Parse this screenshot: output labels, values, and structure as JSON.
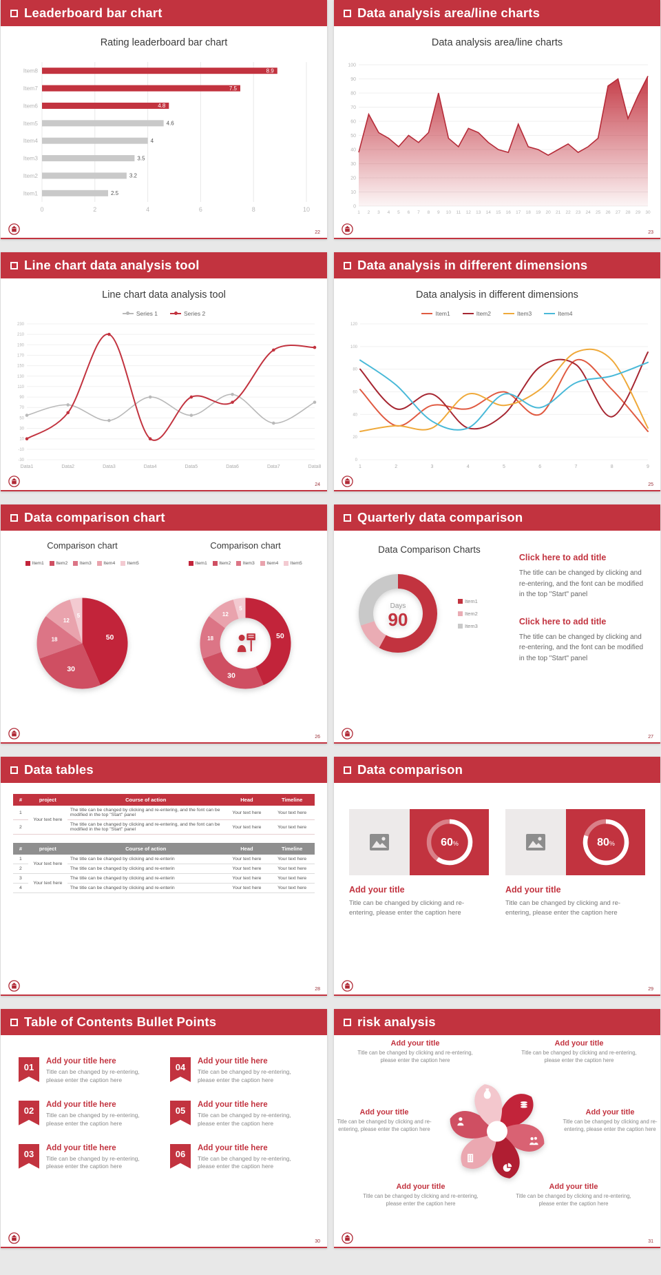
{
  "page": {
    "background": "#e8e8e8",
    "accent": "#c2333f"
  },
  "slides": [
    {
      "header": "Leaderboard bar chart",
      "page_no": "22",
      "chart_title": "Rating leaderboard bar chart",
      "chart_data": {
        "type": "hbar",
        "title": "Rating leaderboard bar chart",
        "categories": [
          "Item8",
          "Item7",
          "Item6",
          "Item5",
          "Item4",
          "Item3",
          "Item2",
          "Item1"
        ],
        "values": [
          8.9,
          7.5,
          4.8,
          4.6,
          4,
          3.5,
          3.2,
          2.5
        ],
        "bar_colors": [
          "#c2333f",
          "#c2333f",
          "#c2333f",
          "#c9c9c9",
          "#c9c9c9",
          "#c9c9c9",
          "#c9c9c9",
          "#c9c9c9"
        ],
        "value_label_colors": [
          "#ffffff",
          "#ffffff",
          "#ffffff",
          "#555555",
          "#555555",
          "#555555",
          "#555555",
          "#555555"
        ],
        "xticks": [
          0,
          2,
          4,
          6,
          8,
          10
        ],
        "xlim": [
          0,
          10
        ]
      }
    },
    {
      "header": "Data analysis area/line charts",
      "page_no": "23",
      "chart_title": "Data analysis area/line charts",
      "chart_data": {
        "type": "area",
        "x": [
          "1",
          "2",
          "3",
          "4",
          "5",
          "6",
          "7",
          "8",
          "9",
          "10",
          "11",
          "12",
          "13",
          "14",
          "15",
          "16",
          "17",
          "18",
          "19",
          "20",
          "21",
          "22",
          "23",
          "24",
          "25",
          "26",
          "27",
          "28",
          "29",
          "30"
        ],
        "values": [
          38,
          65,
          52,
          48,
          42,
          50,
          45,
          52,
          80,
          48,
          42,
          55,
          52,
          45,
          40,
          38,
          58,
          42,
          40,
          36,
          40,
          44,
          38,
          42,
          48,
          85,
          90,
          62,
          78,
          92
        ],
        "ylim": [
          0,
          100
        ],
        "yticks": [
          0,
          10,
          20,
          30,
          40,
          50,
          60,
          70,
          80,
          90,
          100
        ],
        "line_color": "#b52b38",
        "fill_color": "#c2333f"
      }
    },
    {
      "header": "Line chart data analysis tool",
      "page_no": "24",
      "chart_title": "Line chart data analysis tool",
      "chart_data": {
        "type": "line",
        "categories": [
          "Data1",
          "Data2",
          "Data3",
          "Data4",
          "Data5",
          "Data6",
          "Data7",
          "Data8"
        ],
        "yticks": [
          -30,
          -10,
          10,
          30,
          50,
          70,
          90,
          110,
          130,
          150,
          170,
          190,
          210,
          230
        ],
        "ylim": [
          -30,
          230
        ],
        "markers": true,
        "smooth": true,
        "series": [
          {
            "name": "Series 1",
            "color": "#b9b9b9",
            "width": 1.6,
            "values": [
              55,
              75,
              45,
              90,
              55,
              95,
              40,
              80
            ]
          },
          {
            "name": "Series 2",
            "color": "#c2333f",
            "width": 2,
            "values": [
              10,
              60,
              210,
              10,
              90,
              80,
              180,
              185
            ]
          }
        ]
      }
    },
    {
      "header": "Data analysis in different dimensions",
      "page_no": "25",
      "chart_title": "Data analysis in different dimensions",
      "chart_data": {
        "type": "line",
        "categories": [
          "1",
          "2",
          "3",
          "4",
          "5",
          "6",
          "7",
          "8",
          "9"
        ],
        "yticks": [
          0,
          20,
          40,
          60,
          80,
          100,
          120
        ],
        "ylim": [
          0,
          120
        ],
        "markers": false,
        "smooth": true,
        "series": [
          {
            "name": "Item1",
            "color": "#e05a41",
            "width": 2,
            "values": [
              62,
              30,
              48,
              45,
              60,
              40,
              88,
              62,
              25
            ]
          },
          {
            "name": "Item2",
            "color": "#a62631",
            "width": 2,
            "values": [
              80,
              45,
              58,
              28,
              40,
              82,
              84,
              38,
              95
            ]
          },
          {
            "name": "Item3",
            "color": "#efa93a",
            "width": 2,
            "values": [
              25,
              30,
              28,
              58,
              48,
              62,
              95,
              88,
              28
            ]
          },
          {
            "name": "Item4",
            "color": "#49b9d8",
            "width": 2,
            "values": [
              88,
              66,
              34,
              28,
              58,
              46,
              68,
              74,
              86
            ]
          }
        ]
      }
    },
    {
      "header": "Data comparison chart",
      "page_no": "26",
      "charts": [
        {
          "type": "pie",
          "title": "Comparison chart",
          "labels": [
            "Item1",
            "Item2",
            "Item3",
            "Item4",
            "Item5"
          ],
          "values": [
            50,
            30,
            18,
            12,
            5
          ],
          "colors": [
            "#c2243a",
            "#cf4f62",
            "#dc7586",
            "#e9a3ad",
            "#f3cad1"
          ],
          "donut": false
        },
        {
          "type": "pie",
          "title": "Comparison chart",
          "labels": [
            "Item1",
            "Item2",
            "Item3",
            "Item4",
            "Item5"
          ],
          "values": [
            50,
            30,
            18,
            12,
            5
          ],
          "colors": [
            "#c2243a",
            "#cf4f62",
            "#dc7586",
            "#e9a3ad",
            "#f3cad1"
          ],
          "donut": true,
          "center_icon": "presenter-icon"
        }
      ]
    },
    {
      "header": "Quarterly data comparison",
      "page_no": "27",
      "chart_title": "Data Comparison Charts",
      "chart_data": {
        "type": "donut_stat",
        "labels": [
          "Item1",
          "Item2",
          "Item3"
        ],
        "values": [
          58,
          12,
          30
        ],
        "colors": [
          "#c2333f",
          "#eaacb4",
          "#c9c9c9"
        ],
        "center_label": "Days",
        "center_value": "90"
      },
      "blocks": [
        {
          "heading": "Click here to add title",
          "body": "The title can be changed by clicking and re-entering, and the font can be modified in the top \"Start\" panel"
        },
        {
          "heading": "Click here to add title",
          "body": "The title can be changed by clicking and re-entering, and the font can be modified in the top \"Start\" panel"
        }
      ]
    },
    {
      "header": "Data tables",
      "page_no": "28",
      "table1": {
        "columns": [
          "#",
          "project",
          "Course of action",
          "Head",
          "Timeline"
        ],
        "project": "Your text here",
        "rows": [
          {
            "no": "1",
            "action": "The title can be changed by clicking and re-entering, and the font can be modified in the top \"Start\" panel",
            "head": "Your text here",
            "timeline": "Your text here"
          },
          {
            "no": "2",
            "action": "The title can be changed by clicking and re-entering, and the font can be modified in the top \"Start\" panel",
            "head": "Your text here",
            "timeline": "Your text here"
          }
        ]
      },
      "table2": {
        "columns": [
          "#",
          "project",
          "Course of action",
          "Head",
          "Timeline"
        ],
        "project_a": "Your text here",
        "project_b": "Your text here",
        "rows": [
          {
            "no": "1",
            "action": "The title can be changed by clicking and re-enterin",
            "head": "Your text here",
            "timeline": "Your text here"
          },
          {
            "no": "2",
            "action": "The title can be changed by clicking and re-enterin",
            "head": "Your text here",
            "timeline": "Your text here"
          },
          {
            "no": "3",
            "action": "The title can be changed by clicking and re-enterin",
            "head": "Your text here",
            "timeline": "Your text here"
          },
          {
            "no": "4",
            "action": "The title can be changed by clicking and re-enterin",
            "head": "Your text here",
            "timeline": "Your text here"
          }
        ]
      }
    },
    {
      "header": "Data comparison",
      "page_no": "29",
      "cards": [
        {
          "ring": {
            "type": "progress",
            "value": 60,
            "unit": "%"
          },
          "title": "Add your title",
          "caption": "Title can be changed by clicking and re-entering, please enter the caption here"
        },
        {
          "ring": {
            "type": "progress",
            "value": 80,
            "unit": "%"
          },
          "title": "Add your title",
          "caption": "Title can be changed by clicking and re-entering, please enter the caption here"
        }
      ]
    },
    {
      "header": "Table of Contents Bullet Points",
      "page_no": "30",
      "items": [
        {
          "num": "01",
          "title": "Add your title here",
          "caption": "Title can be changed by re-entering, please enter the caption here"
        },
        {
          "num": "02",
          "title": "Add your title here",
          "caption": "Title can be changed by re-entering, please enter the caption here"
        },
        {
          "num": "03",
          "title": "Add your title here",
          "caption": "Title can be changed by re-entering, please enter the caption here"
        },
        {
          "num": "04",
          "title": "Add your title here",
          "caption": "Title can be changed by re-entering, please enter the caption here"
        },
        {
          "num": "05",
          "title": "Add your title here",
          "caption": "Title can be changed by re-entering, please enter the caption here"
        },
        {
          "num": "06",
          "title": "Add your title here",
          "caption": "Title can be changed by re-entering, please enter the caption here"
        }
      ]
    },
    {
      "header": "risk analysis",
      "page_no": "31",
      "diagram": {
        "type": "pinwheel",
        "petal_colors": [
          "#c2243a",
          "#d96273",
          "#b01e32",
          "#eba8b1",
          "#cf4f62",
          "#f3c7cd"
        ],
        "icons": [
          "coins-icon",
          "people-icon",
          "pie-icon",
          "building-icon",
          "person-icon",
          "moneybag-icon"
        ]
      },
      "labels": [
        {
          "title": "Add your title",
          "caption": "Title can be changed by clicking and re-entering, please enter the caption here"
        },
        {
          "title": "Add your title",
          "caption": "Title can be changed by clicking and re-entering, please enter the caption here"
        },
        {
          "title": "Add your title",
          "caption": "Title can be changed by clicking and re-entering, please enter the caption here"
        },
        {
          "title": "Add your title",
          "caption": "Title can be changed by clicking and re-entering, please enter the caption here"
        },
        {
          "title": "Add your title",
          "caption": "Title can be changed by clicking and re-entering, please enter the caption here"
        },
        {
          "title": "Add your title",
          "caption": "Title can be changed by clicking and re-entering, please enter the caption here"
        }
      ]
    }
  ]
}
